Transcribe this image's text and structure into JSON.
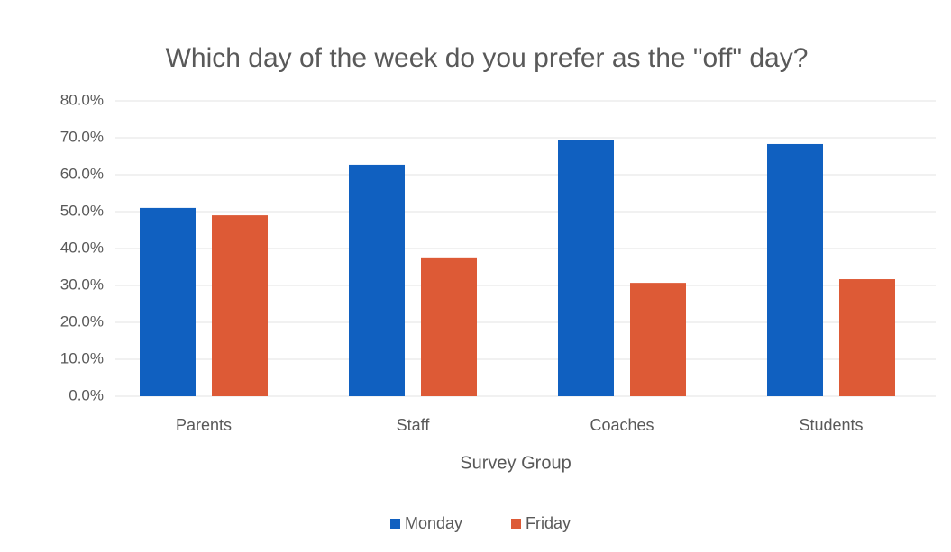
{
  "chart_data": {
    "type": "bar",
    "title": "Which day of the week do you prefer as the \"off\" day?",
    "x_label": "Survey Group",
    "categories": [
      "Parents",
      "Staff",
      "Coaches",
      "Students"
    ],
    "series": [
      {
        "name": "Monday",
        "color": "#1060c0",
        "values": [
          51.0,
          62.7,
          69.3,
          68.3
        ]
      },
      {
        "name": "Friday",
        "color": "#dd5a36",
        "values": [
          49.0,
          37.6,
          30.7,
          31.7
        ]
      }
    ],
    "ylim": [
      0,
      80
    ],
    "yticks": [
      {
        "value": 0,
        "label": "0.0%"
      },
      {
        "value": 10,
        "label": "10.0%"
      },
      {
        "value": 20,
        "label": "20.0%"
      },
      {
        "value": 30,
        "label": "30.0%"
      },
      {
        "value": 40,
        "label": "40.0%"
      },
      {
        "value": 50,
        "label": "50.0%"
      },
      {
        "value": 60,
        "label": "60.0%"
      },
      {
        "value": 70,
        "label": "70.0%"
      },
      {
        "value": 80,
        "label": "80.0%"
      }
    ],
    "grid": true,
    "legend": "bottom"
  }
}
